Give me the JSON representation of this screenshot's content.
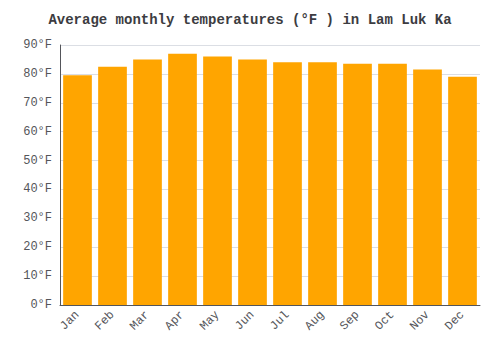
{
  "chart_data": {
    "type": "bar",
    "title": "Average monthly temperatures (°F ) in Lam Luk Ka",
    "categories": [
      "Jan",
      "Feb",
      "Mar",
      "Apr",
      "May",
      "Jun",
      "Jul",
      "Aug",
      "Sep",
      "Oct",
      "Nov",
      "Dec"
    ],
    "values": [
      79.5,
      82.5,
      85.0,
      87.0,
      86.0,
      85.0,
      84.0,
      84.0,
      83.5,
      83.5,
      81.5,
      79.0
    ],
    "color": "#FFA500",
    "ylim": [
      0,
      90
    ],
    "yticks": [
      {
        "value": 0,
        "label": "0°F"
      },
      {
        "value": 10,
        "label": "10°F"
      },
      {
        "value": 20,
        "label": "20°F"
      },
      {
        "value": 30,
        "label": "30°F"
      },
      {
        "value": 40,
        "label": "40°F"
      },
      {
        "value": 50,
        "label": "50°F"
      },
      {
        "value": 60,
        "label": "60°F"
      },
      {
        "value": 70,
        "label": "70°F"
      },
      {
        "value": 80,
        "label": "80°F"
      },
      {
        "value": 90,
        "label": "90°F"
      }
    ],
    "grid": true
  }
}
